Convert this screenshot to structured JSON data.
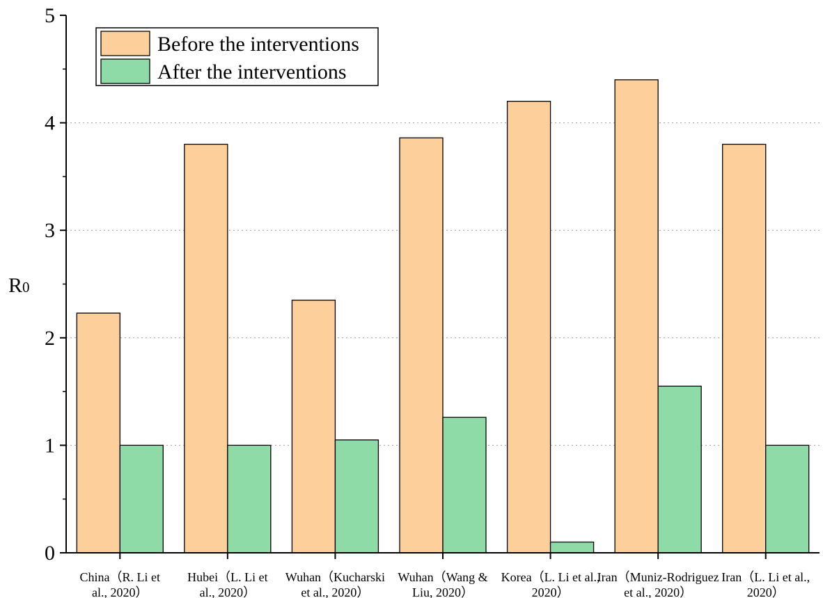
{
  "chart_data": {
    "type": "bar",
    "title": "",
    "xlabel": "",
    "ylabel": "R",
    "ylabel_sub": "0",
    "ylim": [
      0,
      5
    ],
    "yticks": [
      0,
      1,
      2,
      3,
      4,
      5
    ],
    "grid": "horizontal dotted",
    "legend_position": "top-left",
    "categories": [
      {
        "line1": "China（R. Li et",
        "line2": "al., 2020）"
      },
      {
        "line1": "Hubei（L. Li et",
        "line2": "al., 2020）"
      },
      {
        "line1": "Wuhan（Kucharski",
        "line2": "et al., 2020）"
      },
      {
        "line1": "Wuhan（Wang &",
        "line2": "Liu, 2020）"
      },
      {
        "line1": "Korea（L. Li et al.,",
        "line2": "2020）"
      },
      {
        "line1": "Iran（Muniz-Rodriguez",
        "line2": "et al., 2020）"
      },
      {
        "line1": "Iran（L. Li et al.,",
        "line2": "2020）"
      }
    ],
    "series": [
      {
        "name": "Before the interventions",
        "color": "#FDD09B",
        "values": [
          2.23,
          3.8,
          2.35,
          3.86,
          4.2,
          4.4,
          3.8
        ]
      },
      {
        "name": "After the interventions",
        "color": "#8FDBA8",
        "values": [
          1.0,
          1.0,
          1.05,
          1.26,
          0.1,
          1.55,
          1.0
        ]
      }
    ]
  }
}
